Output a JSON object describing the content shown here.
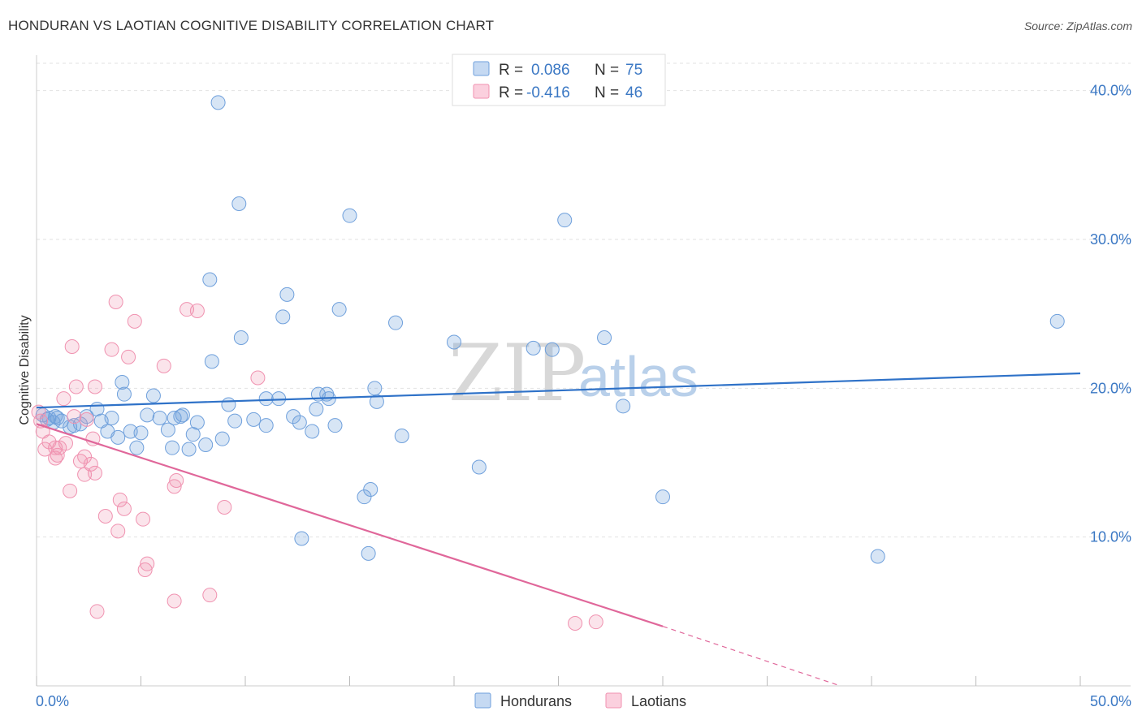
{
  "title": "HONDURAN VS LAOTIAN COGNITIVE DISABILITY CORRELATION CHART",
  "source": "Source: ZipAtlas.com",
  "watermark": {
    "zip": "ZIP",
    "atlas": "atlas"
  },
  "legend": {
    "rows": [
      {
        "r_label": "R =",
        "r_value": "0.086",
        "n_label": "N =",
        "n_value": "75",
        "color": "#6fa0dc"
      },
      {
        "r_label": "R =",
        "r_value": "-0.416",
        "n_label": "N =",
        "n_value": "46",
        "color": "#f092b0"
      }
    ]
  },
  "chart_data": {
    "type": "scatter",
    "title": "HONDURAN VS LAOTIAN COGNITIVE DISABILITY CORRELATION CHART",
    "xlabel": "",
    "ylabel": "Cognitive Disability",
    "xlim": [
      0,
      50
    ],
    "ylim": [
      0,
      42
    ],
    "x_tick_labels": [
      "0.0%",
      "50.0%"
    ],
    "y_ticks": [
      10,
      20,
      30,
      40
    ],
    "y_tick_labels": [
      "10.0%",
      "20.0%",
      "30.0%",
      "40.0%"
    ],
    "grid": true,
    "legend_position": "top-center",
    "series": [
      {
        "name": "Hondurans",
        "color": "#6fa0dc",
        "line_color": "#2f72c8",
        "trend": {
          "x": [
            0,
            50
          ],
          "y": [
            18.7,
            21.0
          ]
        },
        "points": [
          [
            8.7,
            39.2
          ],
          [
            9.7,
            32.4
          ],
          [
            15,
            31.6
          ],
          [
            25.3,
            31.3
          ],
          [
            8.3,
            27.3
          ],
          [
            12,
            26.3
          ],
          [
            14.5,
            25.3
          ],
          [
            11.8,
            24.8
          ],
          [
            17.2,
            24.4
          ],
          [
            48.9,
            24.5
          ],
          [
            9.8,
            23.4
          ],
          [
            20,
            23.1
          ],
          [
            23.8,
            22.7
          ],
          [
            24.7,
            22.6
          ],
          [
            27.2,
            23.4
          ],
          [
            8.4,
            21.8
          ],
          [
            4.1,
            20.4
          ],
          [
            16.2,
            20.0
          ],
          [
            4.2,
            19.6
          ],
          [
            5.6,
            19.5
          ],
          [
            11,
            19.3
          ],
          [
            11.6,
            19.3
          ],
          [
            13.5,
            19.6
          ],
          [
            13.9,
            19.6
          ],
          [
            14,
            19.3
          ],
          [
            16.3,
            19.1
          ],
          [
            28.1,
            18.8
          ],
          [
            9.2,
            18.9
          ],
          [
            13.4,
            18.6
          ],
          [
            2.9,
            18.6
          ],
          [
            0.3,
            18.2
          ],
          [
            0.6,
            18.0
          ],
          [
            0.9,
            18.1
          ],
          [
            1.2,
            17.8
          ],
          [
            1.8,
            17.5
          ],
          [
            2.4,
            18.1
          ],
          [
            3.1,
            17.8
          ],
          [
            3.6,
            18.0
          ],
          [
            5.3,
            18.2
          ],
          [
            5.9,
            18.0
          ],
          [
            6.9,
            18.1
          ],
          [
            7.7,
            17.7
          ],
          [
            9.5,
            17.8
          ],
          [
            10.4,
            17.9
          ],
          [
            11,
            17.5
          ],
          [
            12.3,
            18.1
          ],
          [
            12.6,
            17.7
          ],
          [
            14.3,
            17.5
          ],
          [
            1.6,
            17.4
          ],
          [
            3.4,
            17.1
          ],
          [
            4.5,
            17.1
          ],
          [
            5,
            17.0
          ],
          [
            6.3,
            17.2
          ],
          [
            7.5,
            16.9
          ],
          [
            8.1,
            16.2
          ],
          [
            8.9,
            16.6
          ],
          [
            17.5,
            16.8
          ],
          [
            13.2,
            17.1
          ],
          [
            3.9,
            16.7
          ],
          [
            4.8,
            16.0
          ],
          [
            6.5,
            16.0
          ],
          [
            7.3,
            15.9
          ],
          [
            21.2,
            14.7
          ],
          [
            16,
            13.2
          ],
          [
            15.7,
            12.7
          ],
          [
            30,
            12.7
          ],
          [
            12.7,
            9.9
          ],
          [
            15.9,
            8.9
          ],
          [
            40.3,
            8.7
          ],
          [
            6.6,
            18.0
          ],
          [
            2.1,
            17.6
          ],
          [
            0.5,
            17.9
          ],
          [
            1.0,
            18.0
          ],
          [
            0.8,
            17.7
          ],
          [
            7.0,
            18.2
          ]
        ]
      },
      {
        "name": "Laotians",
        "color": "#f092b0",
        "line_color": "#e0679a",
        "trend": {
          "x": [
            0,
            30
          ],
          "y": [
            17.6,
            4.0
          ]
        },
        "trend_dashed": {
          "x": [
            30,
            38.5
          ],
          "y": [
            4.0,
            0
          ]
        },
        "points": [
          [
            3.8,
            25.8
          ],
          [
            7.2,
            25.3
          ],
          [
            7.7,
            25.2
          ],
          [
            4.7,
            24.5
          ],
          [
            1.7,
            22.8
          ],
          [
            3.6,
            22.6
          ],
          [
            4.4,
            22.1
          ],
          [
            6.1,
            21.5
          ],
          [
            10.6,
            20.7
          ],
          [
            1.9,
            20.1
          ],
          [
            2.8,
            20.1
          ],
          [
            1.3,
            19.3
          ],
          [
            0.1,
            18.4
          ],
          [
            0.2,
            17.8
          ],
          [
            0.3,
            17.1
          ],
          [
            1.8,
            18.1
          ],
          [
            2.4,
            17.9
          ],
          [
            0.6,
            16.4
          ],
          [
            0.9,
            16.0
          ],
          [
            1.4,
            16.3
          ],
          [
            0.4,
            15.9
          ],
          [
            1.0,
            15.5
          ],
          [
            0.9,
            15.3
          ],
          [
            2.3,
            15.4
          ],
          [
            2.1,
            15.1
          ],
          [
            2.6,
            14.9
          ],
          [
            2.8,
            14.3
          ],
          [
            2.3,
            14.2
          ],
          [
            6.7,
            13.8
          ],
          [
            6.6,
            13.4
          ],
          [
            1.6,
            13.1
          ],
          [
            4.0,
            12.5
          ],
          [
            4.2,
            11.9
          ],
          [
            9.0,
            12.0
          ],
          [
            3.3,
            11.4
          ],
          [
            5.1,
            11.2
          ],
          [
            3.9,
            10.4
          ],
          [
            5.3,
            8.2
          ],
          [
            5.2,
            7.8
          ],
          [
            8.3,
            6.1
          ],
          [
            6.6,
            5.7
          ],
          [
            2.9,
            5.0
          ],
          [
            25.8,
            4.2
          ],
          [
            26.8,
            4.3
          ],
          [
            2.7,
            16.6
          ],
          [
            1.1,
            16.0
          ]
        ]
      }
    ]
  },
  "bottom_legend": [
    {
      "label": "Hondurans",
      "color": "#6fa0dc"
    },
    {
      "label": "Laotians",
      "color": "#f092b0"
    }
  ]
}
